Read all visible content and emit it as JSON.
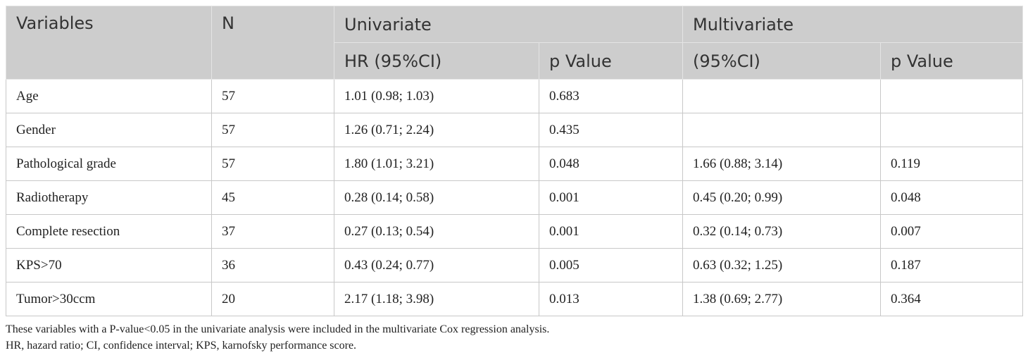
{
  "header": {
    "variables": "Variables",
    "n": "N",
    "univariate": "Univariate",
    "multivariate": "Multivariate",
    "uni_hr": "HR (95%CI)",
    "uni_p": "p Value",
    "multi_hr": "(95%CI)",
    "multi_p": "p Value"
  },
  "rows": [
    {
      "variable": "Age",
      "n": "57",
      "uni_hr": "1.01 (0.98; 1.03)",
      "uni_p": "0.683",
      "multi_hr": "",
      "multi_p": ""
    },
    {
      "variable": "Gender",
      "n": "57",
      "uni_hr": "1.26 (0.71; 2.24)",
      "uni_p": "0.435",
      "multi_hr": "",
      "multi_p": ""
    },
    {
      "variable": "Pathological grade",
      "n": "57",
      "uni_hr": "1.80 (1.01; 3.21)",
      "uni_p": "0.048",
      "multi_hr": "1.66 (0.88; 3.14)",
      "multi_p": "0.119"
    },
    {
      "variable": "Radiotherapy",
      "n": "45",
      "uni_hr": "0.28 (0.14; 0.58)",
      "uni_p": "0.001",
      "multi_hr": "0.45 (0.20; 0.99)",
      "multi_p": "0.048"
    },
    {
      "variable": "Complete resection",
      "n": "37",
      "uni_hr": "0.27 (0.13; 0.54)",
      "uni_p": "0.001",
      "multi_hr": "0.32 (0.14; 0.73)",
      "multi_p": "0.007"
    },
    {
      "variable": "KPS>70",
      "n": "36",
      "uni_hr": "0.43 (0.24; 0.77)",
      "uni_p": "0.005",
      "multi_hr": "0.63 (0.32; 1.25)",
      "multi_p": "0.187"
    },
    {
      "variable": "Tumor>30ccm",
      "n": "20",
      "uni_hr": "2.17 (1.18; 3.98)",
      "uni_p": "0.013",
      "multi_hr": "1.38 (0.69; 2.77)",
      "multi_p": "0.364"
    }
  ],
  "footnotes": [
    "These variables with a P-value<0.05 in the univariate analysis were included in the multivariate Cox regression analysis.",
    "HR, hazard ratio; CI, confidence interval; KPS, karnofsky performance score."
  ]
}
